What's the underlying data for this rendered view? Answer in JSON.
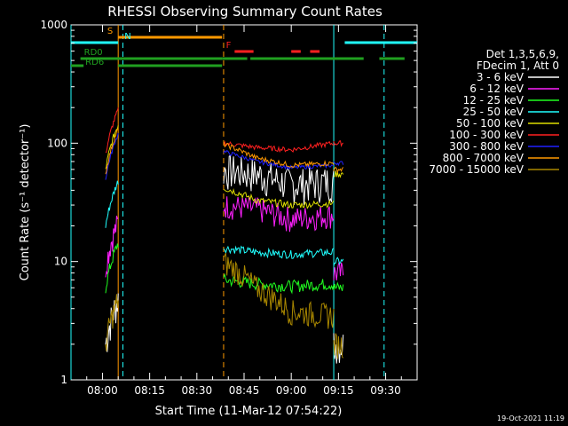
{
  "chart_data": {
    "type": "line",
    "title": "RHESSI Observing Summary Count Rates",
    "xlabel": "Start Time (11-Mar-12 07:54:22)",
    "ylabel": "Count Rate (s⁻¹ detector⁻¹)",
    "y_scale": "log",
    "ylim": [
      1,
      1000
    ],
    "xlim_minutes": [
      -10,
      100
    ],
    "x_tick_labels": [
      {
        "label": "08:00",
        "minute": 0
      },
      {
        "label": "08:15",
        "minute": 15
      },
      {
        "label": "08:30",
        "minute": 30
      },
      {
        "label": "08:45",
        "minute": 45
      },
      {
        "label": "09:00",
        "minute": 60
      },
      {
        "label": "09:15",
        "minute": 75
      },
      {
        "label": "09:30",
        "minute": 90
      }
    ],
    "y_tick_labels": [
      {
        "label": "1",
        "value": 1
      },
      {
        "label": "10",
        "value": 10
      },
      {
        "label": "100",
        "value": 100
      },
      {
        "label": "1000",
        "value": 1000
      }
    ],
    "legend_header": [
      "Det 1,3,5,6,9,",
      "FDecim 1, Att 0"
    ],
    "series": [
      {
        "name": "3 - 6 keV",
        "color": "#ffffff",
        "pre": 2,
        "mid": [
          60,
          55,
          45,
          48
        ],
        "post": 2,
        "noise": 0.35
      },
      {
        "name": "6 - 12 keV",
        "color": "#ff20ff",
        "pre": 9,
        "mid": [
          30,
          28,
          23,
          25
        ],
        "post": 8,
        "noise": 0.25
      },
      {
        "name": "12 - 25 keV",
        "color": "#20ff20",
        "pre": 6,
        "mid": [
          7,
          6.5,
          6.2,
          6.5
        ],
        "post": 6,
        "noise": 0.12
      },
      {
        "name": "25 - 50 keV",
        "color": "#20ffff",
        "pre": 20,
        "mid": [
          13,
          12,
          11.5,
          12
        ],
        "post": 10,
        "noise": 0.08
      },
      {
        "name": "50 - 100 keV",
        "color": "#dddd00",
        "pre": 60,
        "mid": [
          42,
          33,
          30,
          31
        ],
        "post": 55,
        "noise": 0.07
      },
      {
        "name": "100 - 300 keV",
        "color": "#ff2020",
        "pre": 80,
        "mid": [
          100,
          92,
          88,
          100
        ],
        "post": 100,
        "noise": 0.05
      },
      {
        "name": "300 - 800 keV",
        "color": "#2020ff",
        "pre": 50,
        "mid": [
          85,
          70,
          62,
          65
        ],
        "post": 68,
        "noise": 0.04
      },
      {
        "name": "800 - 7000 keV",
        "color": "#ff9900",
        "pre": 55,
        "mid": [
          98,
          75,
          65,
          68
        ],
        "post": 60,
        "noise": 0.05
      },
      {
        "name": "7000 - 15000 keV",
        "color": "#aa8800",
        "pre": 2,
        "mid": [
          10,
          6,
          3.8,
          3.5
        ],
        "post": 2,
        "noise": 0.25
      }
    ],
    "flag_bars": [
      {
        "label": "S",
        "color": "#ff9900",
        "segments": [
          [
            5,
            38
          ]
        ]
      },
      {
        "label": "N",
        "color": "#20ffff",
        "segments": [
          [
            -10,
            5
          ],
          [
            77,
            100
          ]
        ]
      },
      {
        "label": "F",
        "color": "#ff2020",
        "segments": [
          [
            42,
            48
          ],
          [
            60,
            63
          ],
          [
            66,
            69
          ]
        ]
      },
      {
        "label": "RD0",
        "color": "#20a020",
        "segments": [
          [
            -7,
            38
          ],
          [
            38,
            46
          ],
          [
            47,
            83
          ],
          [
            88,
            96
          ]
        ]
      },
      {
        "label": "RD6",
        "color": "#20a020",
        "segments": [
          [
            -10,
            -6
          ],
          [
            5,
            38
          ]
        ]
      }
    ],
    "vertical_lines": [
      {
        "minute": -10,
        "color": "#20ffff",
        "style": "solid"
      },
      {
        "minute": 5,
        "color": "#ff9900",
        "style": "solid"
      },
      {
        "minute": 6.5,
        "color": "#20ffff",
        "style": "dashed"
      },
      {
        "minute": 38.5,
        "color": "#ff9900",
        "style": "dashed"
      },
      {
        "minute": 73.5,
        "color": "#20ffff",
        "style": "solid"
      },
      {
        "minute": 89.5,
        "color": "#20ffff",
        "style": "dashed"
      }
    ],
    "timestamp": "19-Oct-2021 11:19"
  }
}
